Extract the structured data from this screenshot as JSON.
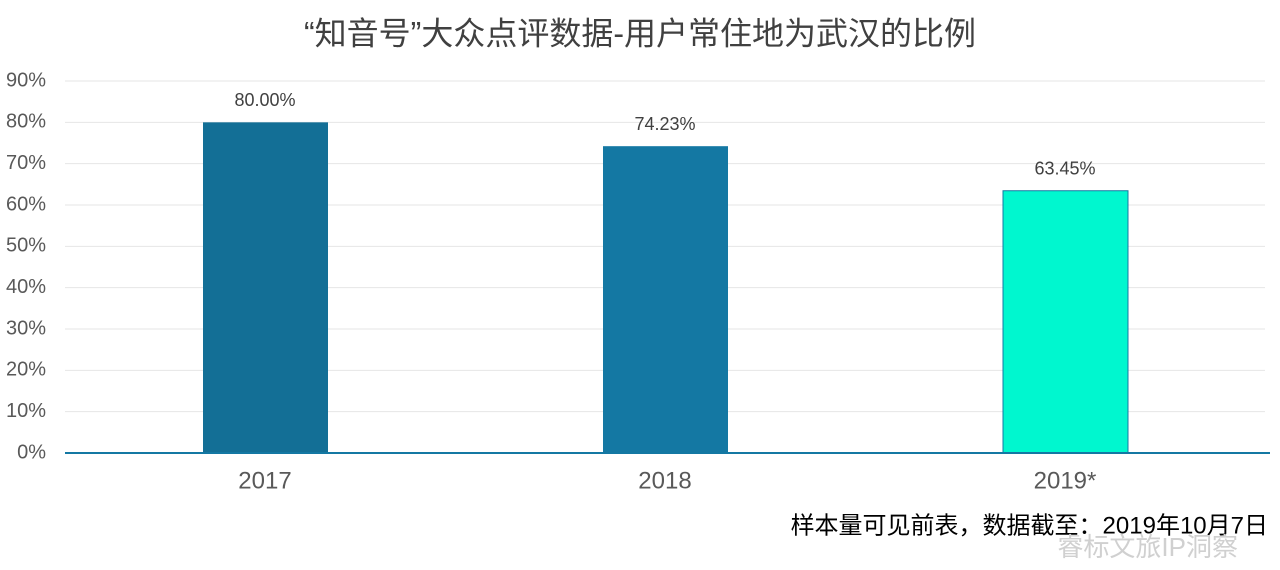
{
  "chart_data": {
    "type": "bar",
    "title": "“知音号”大众点评数据-用户常住地为武汉的比例",
    "categories": [
      "2017",
      "2018",
      "2019*"
    ],
    "values": [
      80,
      74.23,
      63.45
    ],
    "value_labels": [
      "80.00%",
      "74.23%",
      "63.45%"
    ],
    "colors": [
      "#136f96",
      "#1478a3",
      "#00f7cf"
    ],
    "ylim": [
      0,
      90
    ],
    "yticks": [
      {
        "value": 0,
        "label": "0%"
      },
      {
        "value": 10,
        "label": "10%"
      },
      {
        "value": 20,
        "label": "20%"
      },
      {
        "value": 30,
        "label": "30%"
      },
      {
        "value": 40,
        "label": "40%"
      },
      {
        "value": 50,
        "label": "50%"
      },
      {
        "value": 60,
        "label": "60%"
      },
      {
        "value": 70,
        "label": "70%"
      },
      {
        "value": 80,
        "label": "80%"
      },
      {
        "value": 90,
        "label": "90%"
      }
    ],
    "grid": true,
    "footnote": "样本量可见前表，数据截至：2019年10月7日",
    "watermark": "睿标文旅IP洞察"
  }
}
